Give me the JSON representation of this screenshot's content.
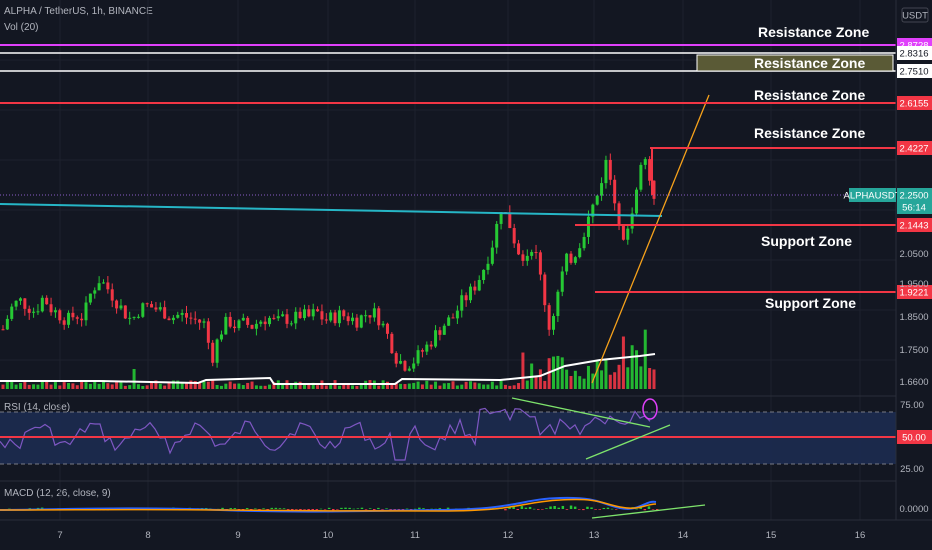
{
  "header": {
    "symbol_line": "ALPHA / TetherUS, 1h, BINANCE",
    "volume_label": "Vol (20)",
    "rsi_label": "RSI (14, close)",
    "macd_label": "MACD (12, 26, close, 9)",
    "currency": "USDT"
  },
  "chart_data": {
    "type": "candlestick",
    "symbol": "ALPHAUSDT",
    "timeframe": "1h",
    "exchange": "BINANCE",
    "x_ticks": [
      "7",
      "8",
      "9",
      "10",
      "11",
      "12",
      "13",
      "14",
      "15",
      "16"
    ],
    "price_ticks": [
      "1.6600",
      "1.7500",
      "1.8500",
      "1.9500",
      "2.0500"
    ],
    "last_price": {
      "label": "ALPHAUSDT",
      "value": "2.2500",
      "countdown": "56:14"
    },
    "levels": [
      {
        "value": "2.8728",
        "color": "#e040fb",
        "text_color": "#ffffff"
      },
      {
        "value": "2.8316",
        "color": "#ffffff",
        "text_color": "#131722"
      },
      {
        "value": "2.7510",
        "color": "#ffffff",
        "text_color": "#131722"
      },
      {
        "value": "2.6155",
        "color": "#f23645",
        "text_color": "#ffffff"
      },
      {
        "value": "2.4227",
        "color": "#f23645",
        "text_color": "#ffffff"
      },
      {
        "value": "2.1443",
        "color": "#f23645",
        "text_color": "#ffffff"
      },
      {
        "value": "1.9221",
        "color": "#f23645",
        "text_color": "#ffffff"
      }
    ],
    "zones": [
      "Resistance Zone",
      "Resistance Zone",
      "Resistance Zone",
      "Resistance Zone",
      "Support Zone",
      "Support Zone"
    ],
    "rsi": {
      "upper": "75.00",
      "mid": "50.00",
      "lower": "25.00"
    },
    "macd": {
      "zero": "0.0000"
    },
    "close_path": [
      1.83,
      1.9,
      1.93,
      1.91,
      1.89,
      1.94,
      1.9,
      1.88,
      1.86,
      1.88,
      1.87,
      1.96,
      2.0,
      1.97,
      1.93,
      1.89,
      1.86,
      1.9,
      1.91,
      1.9,
      1.89,
      1.87,
      1.88,
      1.87,
      1.86,
      1.85,
      1.73,
      1.82,
      1.86,
      1.84,
      1.85,
      1.84,
      1.86,
      1.87,
      1.85,
      1.87,
      1.86,
      1.88,
      1.87,
      1.89,
      1.86,
      1.87,
      1.88,
      1.87,
      1.86,
      1.88,
      1.89,
      1.86,
      1.8,
      1.73,
      1.71,
      1.72,
      1.75,
      1.78,
      1.82,
      1.85,
      1.87,
      1.92,
      1.95,
      1.99,
      2.05,
      2.13,
      2.25,
      2.19,
      2.1,
      2.08,
      2.12,
      1.99,
      1.83,
      1.95,
      2.06,
      2.08,
      2.14,
      2.22,
      2.29,
      2.4,
      2.3,
      2.1,
      2.2,
      2.35,
      2.42,
      2.25
    ]
  }
}
